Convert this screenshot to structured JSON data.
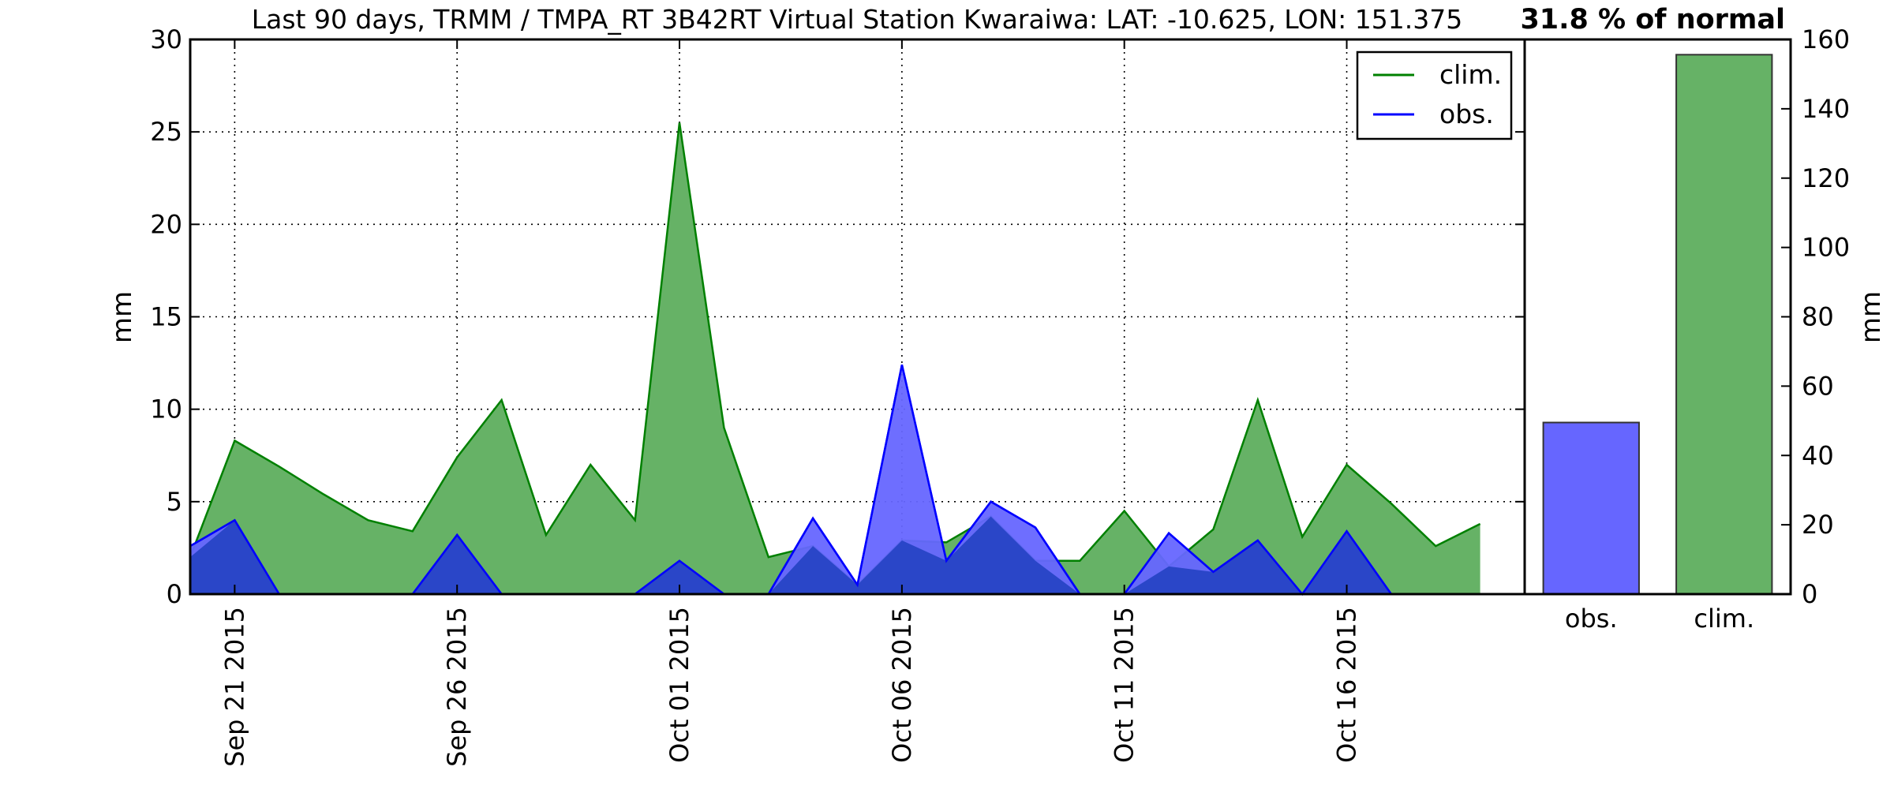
{
  "chart_data": [
    {
      "type": "area",
      "title": "Last 90 days, TRMM / TMPA_RT 3B42RT Virtual Station Kwaraiwa: LAT: -10.625, LON: 151.375",
      "ylabel": "mm",
      "xlabel": "",
      "ylim": [
        0,
        30
      ],
      "yticks": [
        0,
        5,
        10,
        15,
        20,
        25,
        30
      ],
      "xlim": [
        "2015-09-20",
        "2015-10-20"
      ],
      "xticks": [
        {
          "date": "2015-09-21",
          "label": "Sep 21 2015"
        },
        {
          "date": "2015-09-26",
          "label": "Sep 26 2015"
        },
        {
          "date": "2015-10-01",
          "label": "Oct 01 2015"
        },
        {
          "date": "2015-10-06",
          "label": "Oct 06 2015"
        },
        {
          "date": "2015-10-11",
          "label": "Oct 11 2015"
        },
        {
          "date": "2015-10-16",
          "label": "Oct 16 2015"
        }
      ],
      "grid": true,
      "legend_position": "top-right",
      "series": [
        {
          "name": "clim.",
          "color": "#008000",
          "fill_color": "#66b266",
          "points": [
            [
              "2015-09-20",
              2.0
            ],
            [
              "2015-09-21",
              8.3
            ],
            [
              "2015-09-22",
              6.9
            ],
            [
              "2015-09-23",
              5.4
            ],
            [
              "2015-09-24",
              4.0
            ],
            [
              "2015-09-25",
              3.4
            ],
            [
              "2015-09-26",
              7.4
            ],
            [
              "2015-09-27",
              10.5
            ],
            [
              "2015-09-28",
              3.2
            ],
            [
              "2015-09-29",
              7.0
            ],
            [
              "2015-09-30",
              4.0
            ],
            [
              "2015-10-01",
              25.5
            ],
            [
              "2015-10-02",
              9.0
            ],
            [
              "2015-10-03",
              2.0
            ],
            [
              "2015-10-04",
              2.6
            ],
            [
              "2015-10-05",
              0.5
            ],
            [
              "2015-10-06",
              2.9
            ],
            [
              "2015-10-07",
              2.8
            ],
            [
              "2015-10-08",
              4.2
            ],
            [
              "2015-10-09",
              1.8
            ],
            [
              "2015-10-10",
              1.8
            ],
            [
              "2015-10-11",
              4.5
            ],
            [
              "2015-10-12",
              1.5
            ],
            [
              "2015-10-13",
              3.5
            ],
            [
              "2015-10-14",
              10.5
            ],
            [
              "2015-10-15",
              3.1
            ],
            [
              "2015-10-16",
              7.0
            ],
            [
              "2015-10-17",
              4.9
            ],
            [
              "2015-10-18",
              2.6
            ],
            [
              "2015-10-19",
              3.8
            ]
          ]
        },
        {
          "name": "obs.",
          "color": "#0000ff",
          "fill_color": "#6666ff",
          "points": [
            [
              "2015-09-20",
              2.6
            ],
            [
              "2015-09-21",
              4.0
            ],
            [
              "2015-09-22",
              0
            ],
            [
              "2015-09-23",
              0
            ],
            [
              "2015-09-24",
              0
            ],
            [
              "2015-09-25",
              0
            ],
            [
              "2015-09-26",
              3.2
            ],
            [
              "2015-09-27",
              0
            ],
            [
              "2015-09-28",
              0
            ],
            [
              "2015-09-29",
              0
            ],
            [
              "2015-09-30",
              0
            ],
            [
              "2015-10-01",
              1.8
            ],
            [
              "2015-10-02",
              0
            ],
            [
              "2015-10-03",
              0
            ],
            [
              "2015-10-04",
              4.1
            ],
            [
              "2015-10-05",
              0.5
            ],
            [
              "2015-10-06",
              12.4
            ],
            [
              "2015-10-07",
              1.8
            ],
            [
              "2015-10-08",
              5.0
            ],
            [
              "2015-10-09",
              3.6
            ],
            [
              "2015-10-10",
              0
            ],
            [
              "2015-10-11",
              0
            ],
            [
              "2015-10-12",
              3.3
            ],
            [
              "2015-10-13",
              1.2
            ],
            [
              "2015-10-14",
              2.9
            ],
            [
              "2015-10-15",
              0
            ],
            [
              "2015-10-16",
              3.4
            ],
            [
              "2015-10-17",
              0
            ],
            [
              "2015-10-18",
              0
            ],
            [
              "2015-10-19",
              0
            ]
          ]
        }
      ]
    },
    {
      "type": "bar",
      "title": "31.8 % of normal",
      "ylabel": "mm",
      "ylim": [
        0,
        160
      ],
      "yticks": [
        0,
        20,
        40,
        60,
        80,
        100,
        120,
        140,
        160
      ],
      "categories": [
        "obs.",
        "clim."
      ],
      "values": [
        49.5,
        155.6
      ],
      "colors": [
        "#6666ff",
        "#66b266"
      ]
    }
  ]
}
